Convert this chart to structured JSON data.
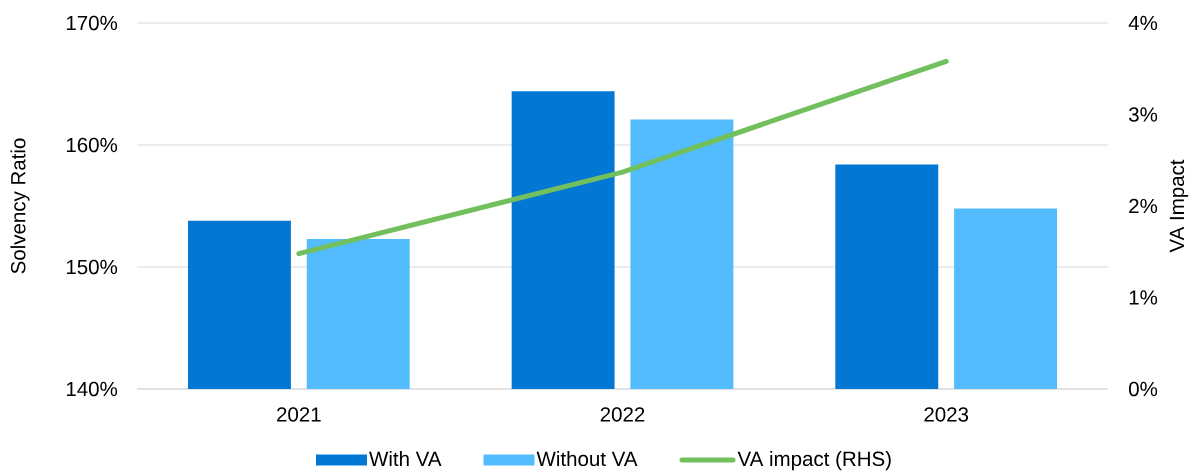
{
  "chart_data": {
    "type": "bar",
    "categories": [
      "2021",
      "2022",
      "2023"
    ],
    "series": [
      {
        "name": "With VA",
        "color": "#0277d4",
        "values": [
          153.8,
          164.4,
          158.4
        ]
      },
      {
        "name": "Without VA",
        "color": "#52bcff",
        "values": [
          152.3,
          162.1,
          154.8
        ]
      },
      {
        "name": "VA impact (RHS)",
        "type": "line",
        "axis": "y2",
        "color": "#72bf5e",
        "values": [
          1.48,
          2.37,
          3.58
        ]
      }
    ],
    "ylabel": "Solvency Ratio",
    "y2label": "VA Impact",
    "ylim": [
      140,
      170
    ],
    "yticks": [
      {
        "value": 140,
        "label": "140%"
      },
      {
        "value": 150,
        "label": "150%"
      },
      {
        "value": 160,
        "label": "160%"
      },
      {
        "value": 170,
        "label": "170%"
      }
    ],
    "y2lim": [
      0,
      4
    ],
    "y2ticks": [
      {
        "value": 0,
        "label": "0%"
      },
      {
        "value": 1,
        "label": "1%"
      },
      {
        "value": 2,
        "label": "2%"
      },
      {
        "value": 3,
        "label": "3%"
      },
      {
        "value": 4,
        "label": "4%"
      }
    ],
    "grid": "y",
    "legend": "bottom",
    "marker": "none",
    "line_style": "solid"
  }
}
